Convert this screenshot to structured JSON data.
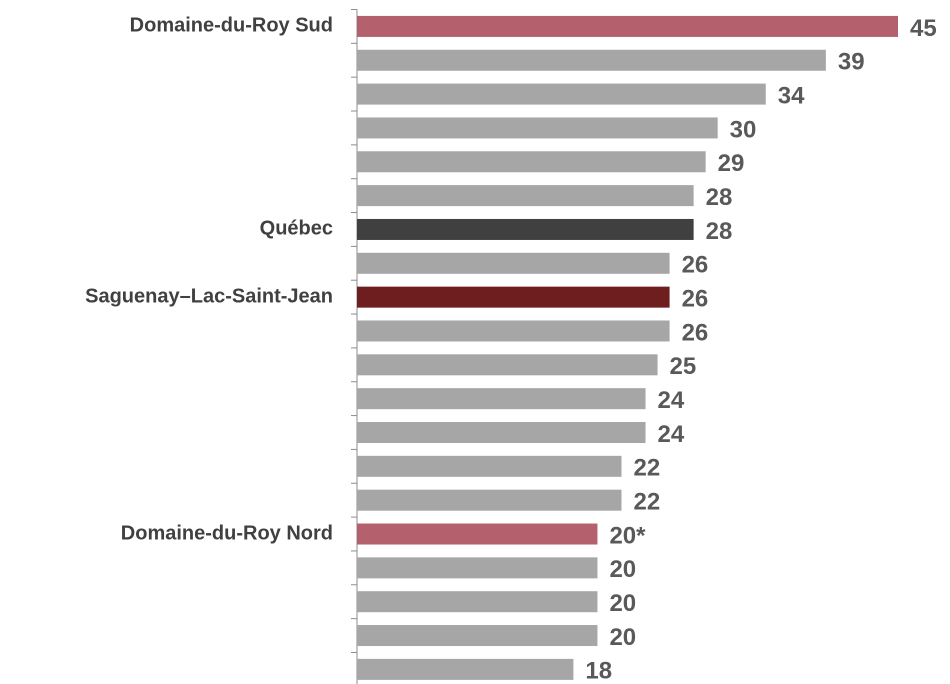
{
  "chart_data": {
    "type": "barh",
    "categories": [
      "Domaine-du-Roy Sud",
      null,
      null,
      null,
      null,
      null,
      "Québec",
      null,
      "Saguenay–Lac-Saint-Jean",
      null,
      null,
      null,
      null,
      null,
      null,
      "Domaine-du-Roy Nord",
      null,
      null,
      null,
      null
    ],
    "values": [
      45,
      39,
      34,
      30,
      29,
      28,
      28,
      26,
      26,
      26,
      25,
      24,
      24,
      22,
      22,
      20,
      20,
      20,
      20,
      18
    ],
    "value_labels": [
      "45",
      "39",
      "34",
      "30",
      "29",
      "28",
      "28",
      "26",
      "26",
      "26",
      "25",
      "24",
      "24",
      "22",
      "22",
      "20*",
      "20",
      "20",
      "20",
      "18"
    ],
    "colors": [
      "#b5606d",
      "#a6a6a6",
      "#a6a6a6",
      "#a6a6a6",
      "#a6a6a6",
      "#a6a6a6",
      "#404040",
      "#a6a6a6",
      "#6e1e1e",
      "#a6a6a6",
      "#a6a6a6",
      "#a6a6a6",
      "#a6a6a6",
      "#a6a6a6",
      "#a6a6a6",
      "#b5606d",
      "#a6a6a6",
      "#a6a6a6",
      "#a6a6a6",
      "#a6a6a6"
    ],
    "xlim": [
      0,
      45
    ]
  }
}
